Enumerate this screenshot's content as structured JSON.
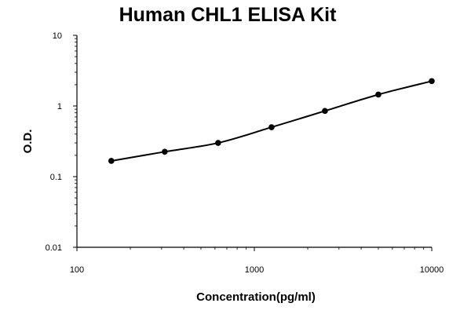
{
  "chart_data": {
    "type": "scatter",
    "title": "Human CHL1 ELISA Kit",
    "xlabel": "Concentration(pg/ml)",
    "ylabel": "O.D.",
    "x_scale": "log",
    "y_scale": "log",
    "xlim": [
      100,
      10000
    ],
    "ylim": [
      0.01,
      10
    ],
    "x_ticks": [
      "100",
      "1000",
      "10000"
    ],
    "y_ticks": [
      "0.01",
      "0.1",
      "1",
      "10"
    ],
    "grid": false,
    "legend": "none",
    "fit_line": true,
    "series": [
      {
        "x": [
          156.25,
          312.5,
          625,
          1250,
          2500,
          5000,
          10000
        ],
        "y": [
          0.167,
          0.225,
          0.3,
          0.5,
          0.85,
          1.45,
          2.25
        ]
      }
    ]
  },
  "colors": {
    "series": "#000000",
    "axis": "#000000",
    "background": "#ffffff"
  }
}
